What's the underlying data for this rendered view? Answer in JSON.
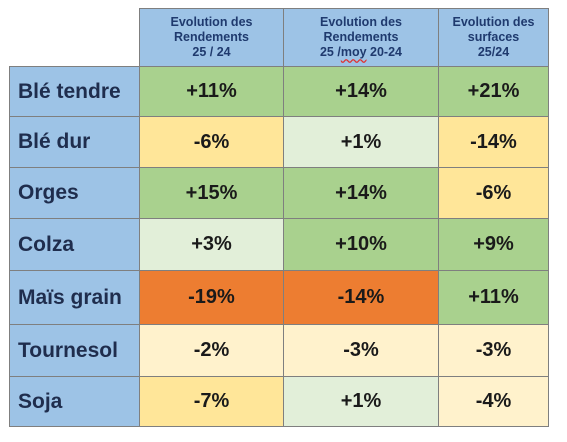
{
  "colors": {
    "header_bg": "#9dc3e6",
    "green": "#a9d18e",
    "light_green": "#e2efd9",
    "yellow": "#ffe699",
    "light_yellow": "#fff2cc",
    "orange": "#ed7d31"
  },
  "headers": [
    [
      "Evolution des",
      "Rendements",
      "25 / 24"
    ],
    [
      "Evolution  des",
      "Rendements",
      "25 /moy 20-24"
    ],
    [
      "Evolution des",
      "surfaces",
      "25/24"
    ]
  ],
  "rows": [
    {
      "label": "Blé tendre",
      "cells": [
        {
          "v": "+11%",
          "c": "green"
        },
        {
          "v": "+14%",
          "c": "green"
        },
        {
          "v": "+21%",
          "c": "green"
        }
      ]
    },
    {
      "label": "Blé dur",
      "cells": [
        {
          "v": "-6%",
          "c": "yellow"
        },
        {
          "v": "+1%",
          "c": "light_green"
        },
        {
          "v": "-14%",
          "c": "yellow"
        }
      ]
    },
    {
      "label": "Orges",
      "cells": [
        {
          "v": "+15%",
          "c": "green"
        },
        {
          "v": "+14%",
          "c": "green"
        },
        {
          "v": "-6%",
          "c": "yellow"
        }
      ]
    },
    {
      "label": "Colza",
      "cells": [
        {
          "v": "+3%",
          "c": "light_green"
        },
        {
          "v": "+10%",
          "c": "green"
        },
        {
          "v": "+9%",
          "c": "green"
        }
      ]
    },
    {
      "label": "Maïs grain",
      "cells": [
        {
          "v": "-19%",
          "c": "orange"
        },
        {
          "v": "-14%",
          "c": "orange"
        },
        {
          "v": "+11%",
          "c": "green"
        }
      ]
    },
    {
      "label": "Tournesol",
      "cells": [
        {
          "v": "-2%",
          "c": "light_yellow"
        },
        {
          "v": "-3%",
          "c": "light_yellow"
        },
        {
          "v": "-3%",
          "c": "light_yellow"
        }
      ]
    },
    {
      "label": "Soja",
      "cells": [
        {
          "v": "-7%",
          "c": "yellow"
        },
        {
          "v": "+1%",
          "c": "light_green"
        },
        {
          "v": "-4%",
          "c": "light_yellow"
        }
      ]
    }
  ]
}
